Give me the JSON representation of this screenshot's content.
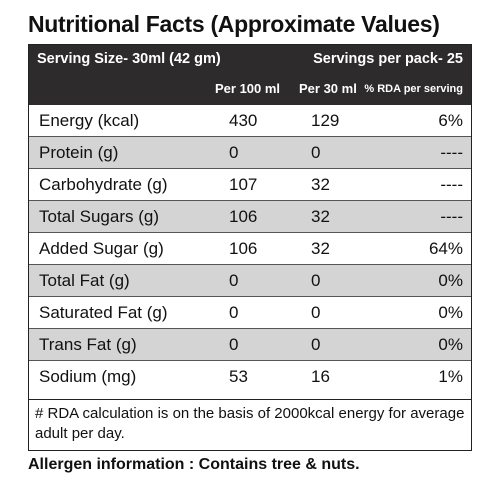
{
  "title": "Nutritional Facts (Approximate Values)",
  "header": {
    "serving_size": "Serving Size-  30ml (42 gm)",
    "servings_per_pack": "Servings per pack- 25",
    "col_per_100": "Per 100 ml",
    "col_per_30": "Per 30 ml",
    "col_rda": "% RDA per serving"
  },
  "rows": [
    {
      "name": "Energy (kcal)",
      "per100": "430",
      "per30": "129",
      "rda": "6%"
    },
    {
      "name": "Protein (g)",
      "per100": "0",
      "per30": "0",
      "rda": "----"
    },
    {
      "name": "Carbohydrate (g)",
      "per100": "107",
      "per30": "32",
      "rda": "----"
    },
    {
      "name": "Total Sugars (g)",
      "per100": "106",
      "per30": "32",
      "rda": "----"
    },
    {
      "name": "Added Sugar (g)",
      "per100": "106",
      "per30": "32",
      "rda": "64%"
    },
    {
      "name": "Total Fat (g)",
      "per100": "0",
      "per30": "0",
      "rda": "0%"
    },
    {
      "name": "Saturated Fat (g)",
      "per100": "0",
      "per30": "0",
      "rda": "0%"
    },
    {
      "name": "Trans Fat (g)",
      "per100": "0",
      "per30": "0",
      "rda": "0%"
    },
    {
      "name": "Sodium (mg)",
      "per100": "53",
      "per30": "16",
      "rda": "1%"
    }
  ],
  "footnote": "# RDA calculation is on the basis of 2000kcal energy for average adult per day.",
  "allergen": "Allergen information : Contains tree & nuts."
}
